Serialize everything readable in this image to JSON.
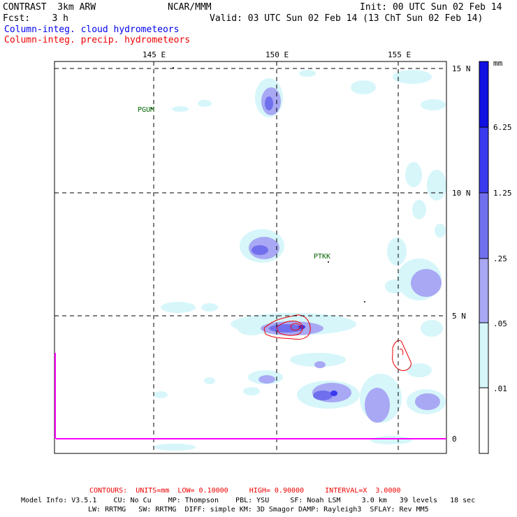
{
  "header": {
    "title": "CONTRAST  3km ARW",
    "org": "NCAR/MMM",
    "init": "Init: 00 UTC Sun 02 Feb 14",
    "fcst": "Fcst:    3 h",
    "valid": "Valid: 03 UTC Sun 02 Feb 14 (13 ChT Sun 02 Feb 14)"
  },
  "fields": {
    "cloud": "Column-integ. cloud hydrometeors",
    "precip": "Column-integ. precip. hydrometeors"
  },
  "axes": {
    "lon_labels": [
      "145 E",
      "150 E",
      "155 E"
    ],
    "lat_labels": [
      "15 N",
      "10 N",
      "5 N",
      "0"
    ]
  },
  "stations": [
    "PGUM",
    "PTKK"
  ],
  "legend": {
    "units": "mm",
    "levels": [
      "6.25",
      "1.25",
      ".25",
      ".05",
      ".01"
    ],
    "colors": [
      "#1010e0",
      "#3a3aee",
      "#7070ee",
      "#a8a8f4",
      "#d6f6fa",
      "#ffffff"
    ]
  },
  "footer": {
    "contours": "CONTOURS:  UNITS=mm  LOW= 0.10000     HIGH= 0.90000     INTERVAL=X  3.0000",
    "model1": "Model Info: V3.5.1    CU: No Cu    MP: Thompson    PBL: YSU     SF: Noah LSM     3.0 km   39 levels   18 sec",
    "model2": "LW: RRTMG   SW: RRTMG  DIFF: simple KM: 3D Smagor DAMP: Rayleigh3  SFLAY: Rev MM5"
  }
}
